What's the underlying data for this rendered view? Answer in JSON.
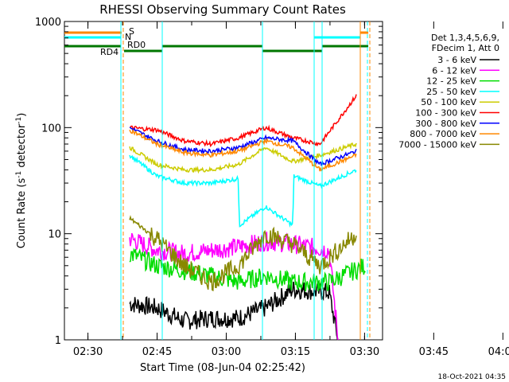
{
  "chart_data": {
    "type": "line",
    "title": "RHESSI Observing Summary Count Rates",
    "xlabel": "Start Time (08-Jun-04 02:25:42)",
    "ylabel_main": "Count Rate (s",
    "ylabel_sup1": "-1",
    "ylabel_mid": " detector",
    "ylabel_sup2": "-1",
    "ylabel_end": ")",
    "yscale": "log",
    "ylim": [
      1,
      1000
    ],
    "xlim_minutes": [
      -21.7,
      1.3
    ],
    "x_ticks": [
      {
        "label": "02:30",
        "value": -20
      },
      {
        "label": "02:45",
        "value": -15
      },
      {
        "label": "03:00",
        "value": -10
      },
      {
        "label": "03:15",
        "value": -5
      },
      {
        "label": "03:30",
        "value": 0
      },
      {
        "label": "03:45",
        "value": 5
      },
      {
        "label": "04:00",
        "value": 10
      }
    ],
    "y_ticks": [
      {
        "label": "1",
        "value": 1
      },
      {
        "label": "10",
        "value": 10
      },
      {
        "label": "100",
        "value": 100
      },
      {
        "label": "1000",
        "value": 1000
      }
    ],
    "legend_header": [
      "Det 1,3,4,5,6,9,",
      "FDecim 1, Att 0"
    ],
    "legend_position": "right",
    "series": [
      {
        "name": "3 - 6 keV",
        "color": "#000000",
        "points": [
          [
            0,
            2.2
          ],
          [
            6,
            2.0
          ],
          [
            12,
            1.5
          ],
          [
            18,
            1.6
          ],
          [
            24,
            1.6
          ],
          [
            30,
            2.0
          ],
          [
            36,
            3.0
          ],
          [
            44,
            2.8
          ],
          [
            46,
            1.0
          ]
        ]
      },
      {
        "name": "6 - 12 keV",
        "color": "#ff00ff",
        "points": [
          [
            0,
            9.0
          ],
          [
            6,
            7.0
          ],
          [
            12,
            6.5
          ],
          [
            18,
            7.0
          ],
          [
            24,
            7.5
          ],
          [
            30,
            8.5
          ],
          [
            36,
            8.0
          ],
          [
            44,
            7.0
          ],
          [
            46,
            1.0
          ]
        ]
      },
      {
        "name": "12 - 25 keV",
        "color": "#00dd00",
        "points": [
          [
            0,
            6.5
          ],
          [
            6,
            5.0
          ],
          [
            12,
            4.5
          ],
          [
            18,
            4.0
          ],
          [
            24,
            3.5
          ],
          [
            30,
            4.0
          ],
          [
            36,
            3.5
          ],
          [
            44,
            3.5
          ],
          [
            52,
            5.0
          ]
        ]
      },
      {
        "name": "25 - 50 keV",
        "color": "#00ffff",
        "points": [
          [
            0,
            55
          ],
          [
            6,
            35
          ],
          [
            12,
            30
          ],
          [
            18,
            30
          ],
          [
            24,
            33
          ],
          [
            24.2,
            12
          ],
          [
            30,
            18
          ],
          [
            36,
            12
          ],
          [
            36.2,
            35
          ],
          [
            42,
            28
          ],
          [
            50,
            40
          ]
        ]
      },
      {
        "name": "50 - 100 keV",
        "color": "#cccc00",
        "points": [
          [
            0,
            65
          ],
          [
            6,
            45
          ],
          [
            12,
            40
          ],
          [
            18,
            40
          ],
          [
            24,
            45
          ],
          [
            30,
            65
          ],
          [
            36,
            48
          ],
          [
            42,
            55
          ],
          [
            50,
            70
          ]
        ]
      },
      {
        "name": "100 - 300 keV",
        "color": "#ff0000",
        "points": [
          [
            0,
            100
          ],
          [
            6,
            95
          ],
          [
            12,
            75
          ],
          [
            18,
            70
          ],
          [
            24,
            80
          ],
          [
            30,
            100
          ],
          [
            36,
            80
          ],
          [
            42,
            70
          ],
          [
            50,
            200
          ]
        ]
      },
      {
        "name": "300 - 800 keV",
        "color": "#0000ff",
        "points": [
          [
            0,
            100
          ],
          [
            6,
            75
          ],
          [
            12,
            62
          ],
          [
            18,
            60
          ],
          [
            24,
            65
          ],
          [
            30,
            80
          ],
          [
            36,
            75
          ],
          [
            42,
            45
          ],
          [
            50,
            60
          ]
        ]
      },
      {
        "name": "800 - 7000 keV",
        "color": "#ff8800",
        "points": [
          [
            0,
            95
          ],
          [
            6,
            70
          ],
          [
            12,
            58
          ],
          [
            18,
            55
          ],
          [
            24,
            60
          ],
          [
            30,
            75
          ],
          [
            36,
            65
          ],
          [
            42,
            40
          ],
          [
            50,
            55
          ]
        ]
      },
      {
        "name": "7000 - 15000 keV",
        "color": "#888800",
        "points": [
          [
            0,
            14
          ],
          [
            6,
            9
          ],
          [
            12,
            5
          ],
          [
            18,
            3.5
          ],
          [
            24,
            5
          ],
          [
            30,
            10
          ],
          [
            36,
            8
          ],
          [
            42,
            5
          ],
          [
            50,
            10
          ]
        ]
      }
    ],
    "state_labels": [
      {
        "label": "S",
        "color": "#ff8800"
      },
      {
        "label": "N",
        "color": "#00ffff"
      },
      {
        "label": "RD0",
        "color": "#007700"
      },
      {
        "label": "RD4",
        "color": "#007700"
      }
    ]
  },
  "footer_timestamp": "18-Oct-2021 04:35"
}
